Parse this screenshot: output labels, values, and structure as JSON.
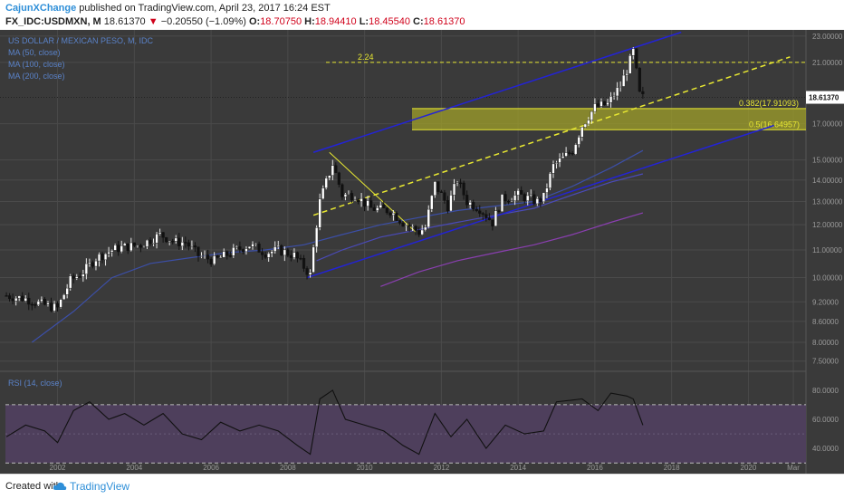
{
  "header": {
    "author": "CajunXChange",
    "published_text": "published on TradingView.com, April 23, 2017 16:24 EST",
    "symbol": "FX_IDC:USDMXN, M",
    "last_price": "18.61370",
    "change_arrow": "▼",
    "change": "−0.20550 (−1.09%)",
    "open_label": "O:",
    "open": "18.70750",
    "high_label": "H:",
    "high": "18.94410",
    "low_label": "L:",
    "low": "18.45540",
    "close_label": "C:",
    "close": "18.61370"
  },
  "legend": {
    "title": "US DOLLAR / MEXICAN PESO, M, IDC",
    "ma50": "MA (50, close)",
    "ma100": "MA (100, close)",
    "ma200": "MA (200, close)",
    "rsi": "RSI (14, close)"
  },
  "footer": {
    "created_with": "Created with",
    "brand": "TradingView"
  },
  "annotations": {
    "ext_label": "2.24",
    "fib1_label": "0.382(17.91093)",
    "fib2_label": "0.5(16.64957)",
    "price_tag": "18.61370"
  },
  "colors": {
    "background": "#3a3a3a",
    "grid": "#4a4a4a",
    "channel": "#2323d6",
    "fib_line": "#e8e832",
    "fib_zone": "#a0a02a",
    "ma50": "#3c4fa8",
    "ma100": "#4a4ab8",
    "ma200": "#8a3fb0",
    "rsi_band": "#4e3f5c",
    "rsi_line": "#111111",
    "axis_text": "#9a9a9a"
  },
  "chart_data": [
    {
      "type": "candlestick",
      "title": "US DOLLAR / MEXICAN PESO, M, IDC",
      "y_scale": "log",
      "xlabel": "",
      "ylabel": "",
      "ylim": [
        7.4,
        23.2
      ],
      "x_range": [
        "2000-08",
        "2021-06"
      ],
      "x_ticks": [
        "2002",
        "2004",
        "2006",
        "2008",
        "2010",
        "2012",
        "2014",
        "2016",
        "2018",
        "2020",
        "Mar"
      ],
      "y_ticks": [
        "7.50000",
        "8.00000",
        "8.60000",
        "9.20000",
        "10.00000",
        "11.00000",
        "12.00000",
        "13.00000",
        "14.00000",
        "15.00000",
        "17.00000",
        "18.61370",
        "21.00000",
        "23.00000"
      ],
      "series": [
        {
          "name": "USDMXN",
          "path": [
            [
              "2000-09",
              9.4
            ],
            [
              "2001-03",
              9.3
            ],
            [
              "2001-09",
              9.1
            ],
            [
              "2002-01",
              9.0
            ],
            [
              "2002-05",
              9.9
            ],
            [
              "2002-09",
              10.2
            ],
            [
              "2003-01",
              10.7
            ],
            [
              "2003-06",
              11.0
            ],
            [
              "2003-09",
              11.1
            ],
            [
              "2004-03",
              11.2
            ],
            [
              "2004-09",
              11.6
            ],
            [
              "2005-02",
              11.3
            ],
            [
              "2005-05",
              11.3
            ],
            [
              "2005-09",
              10.8
            ],
            [
              "2006-02",
              10.6
            ],
            [
              "2006-09",
              11.0
            ],
            [
              "2007-01",
              11.2
            ],
            [
              "2007-06",
              10.9
            ],
            [
              "2007-10",
              11.0
            ],
            [
              "2008-03",
              10.8
            ],
            [
              "2008-08",
              10.1
            ],
            [
              "2008-11",
              13.0
            ],
            [
              "2009-03",
              14.8
            ],
            [
              "2009-06",
              13.3
            ],
            [
              "2009-10",
              13.3
            ],
            [
              "2010-03",
              12.7
            ],
            [
              "2010-09",
              12.6
            ],
            [
              "2011-01",
              12.1
            ],
            [
              "2011-06",
              11.7
            ],
            [
              "2011-08",
              11.9
            ],
            [
              "2011-11",
              13.8
            ],
            [
              "2012-03",
              12.8
            ],
            [
              "2012-06",
              14.0
            ],
            [
              "2012-09",
              13.0
            ],
            [
              "2013-01",
              12.7
            ],
            [
              "2013-05",
              12.1
            ],
            [
              "2013-08",
              13.1
            ],
            [
              "2014-01",
              13.3
            ],
            [
              "2014-07",
              13.0
            ],
            [
              "2014-09",
              13.2
            ],
            [
              "2014-12",
              14.7
            ],
            [
              "2015-06",
              15.5
            ],
            [
              "2015-09",
              16.9
            ],
            [
              "2016-01",
              18.0
            ],
            [
              "2016-05",
              18.2
            ],
            [
              "2016-09",
              19.4
            ],
            [
              "2016-11",
              20.5
            ],
            [
              "2017-01",
              21.8
            ],
            [
              "2017-03",
              18.8
            ],
            [
              "2017-04",
              18.61
            ]
          ]
        }
      ],
      "moving_averages": [
        {
          "name": "MA (50, close)",
          "points": [
            [
              "2001-05",
              8.0
            ],
            [
              "2002-06",
              8.9
            ],
            [
              "2003-06",
              10.0
            ],
            [
              "2004-06",
              10.5
            ],
            [
              "2005-06",
              10.7
            ],
            [
              "2006-06",
              10.9
            ],
            [
              "2007-06",
              11.0
            ],
            [
              "2008-06",
              11.2
            ],
            [
              "2009-06",
              11.6
            ],
            [
              "2010-06",
              12.0
            ],
            [
              "2011-06",
              12.3
            ],
            [
              "2012-06",
              12.6
            ],
            [
              "2013-06",
              12.8
            ],
            [
              "2014-06",
              13.0
            ],
            [
              "2015-06",
              13.7
            ],
            [
              "2016-06",
              14.6
            ],
            [
              "2017-04",
              15.5
            ]
          ]
        },
        {
          "name": "MA (100, close)",
          "points": [
            [
              "2008-10",
              10.6
            ],
            [
              "2009-06",
              11.0
            ],
            [
              "2010-06",
              11.5
            ],
            [
              "2011-06",
              11.8
            ],
            [
              "2012-06",
              12.1
            ],
            [
              "2013-06",
              12.4
            ],
            [
              "2014-06",
              12.7
            ],
            [
              "2015-06",
              13.3
            ],
            [
              "2016-06",
              13.9
            ],
            [
              "2017-04",
              14.3
            ]
          ]
        },
        {
          "name": "MA (200, close)",
          "points": [
            [
              "2010-06",
              9.7
            ],
            [
              "2011-06",
              10.2
            ],
            [
              "2012-06",
              10.6
            ],
            [
              "2013-06",
              10.9
            ],
            [
              "2014-06",
              11.2
            ],
            [
              "2015-06",
              11.6
            ],
            [
              "2016-06",
              12.1
            ],
            [
              "2017-04",
              12.5
            ]
          ]
        }
      ],
      "annotations": {
        "fib_extension": {
          "label": "2.24",
          "value": 21.0
        },
        "fib_zone": {
          "top_label": "0.382(17.91093)",
          "top": 17.91093,
          "bottom_label": "0.5(16.64957)",
          "bottom": 16.64957
        },
        "last_price": 18.6137,
        "channel_lower": [
          [
            "2008-07",
            10.0
          ],
          [
            "2020-09",
            16.9
          ]
        ],
        "channel_upper": [
          [
            "2008-09",
            15.4
          ],
          [
            "2018-04",
            23.3
          ]
        ],
        "dashed_midline": [
          [
            "2008-09",
            12.4
          ],
          [
            "2021-02",
            21.4
          ]
        ],
        "measure_line": [
          [
            "2009-02",
            15.4
          ],
          [
            "2011-05",
            11.7
          ]
        ]
      }
    },
    {
      "type": "line",
      "title": "RSI (14, close)",
      "xlabel": "",
      "ylabel": "",
      "ylim": [
        32,
        88
      ],
      "y_ticks": [
        "40.0000",
        "60.0000",
        "80.0000"
      ],
      "upper_band": 70,
      "lower_band": 30,
      "series": [
        {
          "name": "RSI (14, close)",
          "values": [
            [
              "2000-09",
              48
            ],
            [
              "2001-03",
              56
            ],
            [
              "2001-09",
              52
            ],
            [
              "2002-01",
              44
            ],
            [
              "2002-06",
              66
            ],
            [
              "2002-11",
              72
            ],
            [
              "2003-05",
              60
            ],
            [
              "2003-10",
              64
            ],
            [
              "2004-04",
              56
            ],
            [
              "2004-10",
              64
            ],
            [
              "2005-04",
              50
            ],
            [
              "2005-10",
              46
            ],
            [
              "2006-04",
              58
            ],
            [
              "2006-10",
              52
            ],
            [
              "2007-04",
              56
            ],
            [
              "2007-10",
              52
            ],
            [
              "2008-04",
              42
            ],
            [
              "2008-08",
              36
            ],
            [
              "2008-11",
              74
            ],
            [
              "2009-03",
              80
            ],
            [
              "2009-07",
              60
            ],
            [
              "2010-01",
              56
            ],
            [
              "2010-07",
              52
            ],
            [
              "2011-01",
              42
            ],
            [
              "2011-06",
              36
            ],
            [
              "2011-11",
              64
            ],
            [
              "2012-04",
              48
            ],
            [
              "2012-09",
              60
            ],
            [
              "2013-03",
              40
            ],
            [
              "2013-09",
              56
            ],
            [
              "2014-03",
              50
            ],
            [
              "2014-09",
              52
            ],
            [
              "2015-01",
              72
            ],
            [
              "2015-09",
              74
            ],
            [
              "2016-02",
              66
            ],
            [
              "2016-06",
              78
            ],
            [
              "2016-11",
              76
            ],
            [
              "2017-01",
              74
            ],
            [
              "2017-04",
              56
            ]
          ]
        }
      ]
    }
  ]
}
